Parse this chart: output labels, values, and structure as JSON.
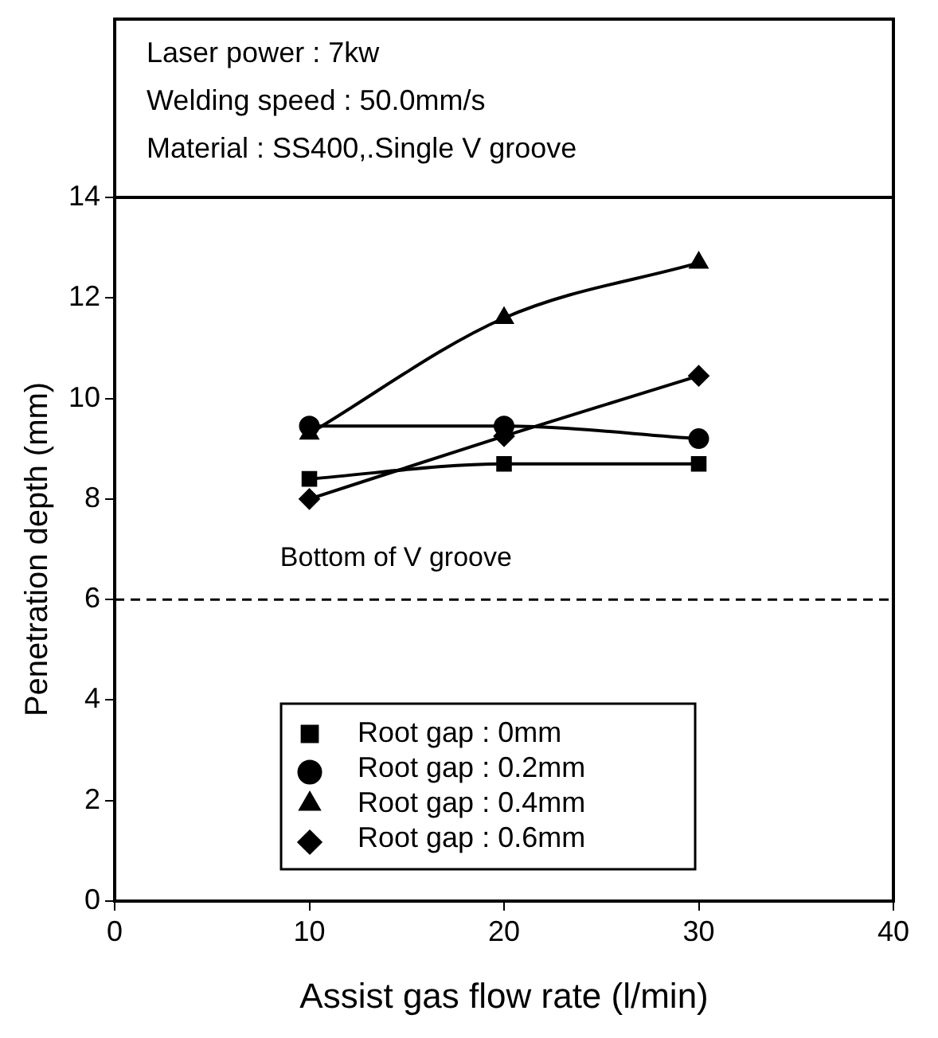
{
  "chart_data": {
    "type": "line",
    "xlabel": "Assist gas flow rate (l/min)",
    "ylabel": "Penetration depth (mm)",
    "annotations": [
      "Laser power : 7kw",
      "Welding speed : 50.0mm/s",
      "Material : SS400,.Single V groove"
    ],
    "x": [
      10,
      20,
      30
    ],
    "series": [
      {
        "name": "Root gap : 0mm",
        "color": "#000000",
        "marker": "square",
        "values": [
          8.4,
          8.7,
          8.7
        ]
      },
      {
        "name": "Root gap : 0.2mm",
        "color": "#000000",
        "marker": "circle",
        "values": [
          9.45,
          9.45,
          9.2
        ]
      },
      {
        "name": "Root gap : 0.4mm",
        "color": "#000000",
        "marker": "triangle",
        "values": [
          9.3,
          11.6,
          12.7
        ]
      },
      {
        "name": "Root gap : 0.6mm",
        "color": "#000000",
        "marker": "diamond",
        "values": [
          8.0,
          9.25,
          10.45
        ]
      }
    ],
    "xlim": [
      0,
      40
    ],
    "xticks": [
      0,
      10,
      20,
      30,
      40
    ],
    "ylim": [
      0,
      14
    ],
    "yticks": [
      0,
      2,
      4,
      6,
      8,
      10,
      12,
      14
    ],
    "ref_lines": [
      {
        "axis": "y",
        "value": 6,
        "label": "Bottom of V groove",
        "color": "#000000",
        "line_style": "dashed"
      }
    ],
    "grid": false,
    "legend": "bottom",
    "line_style": "solid"
  }
}
